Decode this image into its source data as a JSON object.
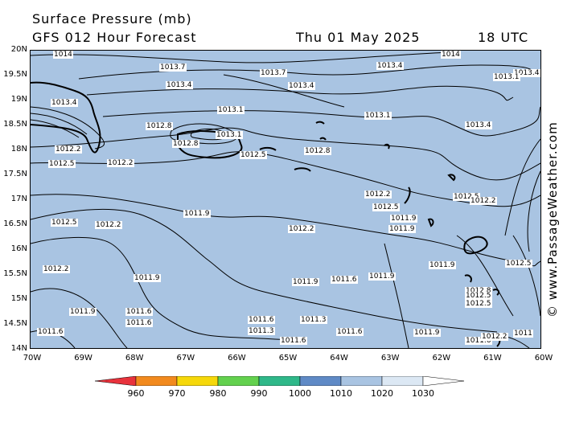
{
  "title": "Surface Pressure (mb)",
  "subtitle": "GFS 012 Hour Forecast",
  "date": "Thu 01 May 2025",
  "time": "18 UTC",
  "credit": "© www.PassageWeather.com",
  "map": {
    "background": "#a9c4e2",
    "lat_labels": [
      "20N",
      "19.5N",
      "19N",
      "18.5N",
      "18N",
      "17.5N",
      "17N",
      "16.5N",
      "16N",
      "15.5N",
      "15N",
      "14.5N",
      "14N"
    ],
    "lon_labels": [
      "70W",
      "69W",
      "68W",
      "67W",
      "66W",
      "65W",
      "64W",
      "63W",
      "62W",
      "61W",
      "60W"
    ],
    "isobar_labels": [
      "1014",
      "1013.7",
      "1013.7",
      "1013.4",
      "1013.4",
      "1013.4",
      "1013.1",
      "1013.1",
      "1013.4",
      "1014",
      "1013.4",
      "1013.1",
      "1013.4",
      "1013.1",
      "1012.8",
      "1012.8",
      "1012.5",
      "1012.2",
      "1012.2",
      "1012.8",
      "1012.2",
      "1012.5",
      "1012.5",
      "1012.5",
      "1012.2",
      "1012.5",
      "1011.9",
      "1012.2",
      "1011.9",
      "1012.2",
      "1012.5",
      "1011.9",
      "1011.9",
      "1012.2",
      "1012.8",
      "1012.5",
      "1011.9",
      "1011.9",
      "1011.6",
      "1011.9",
      "1012.5",
      "1011.9",
      "1011.6",
      "1011.6",
      "1011.6",
      "1011.6",
      "1011.3",
      "1011.3",
      "1011.6",
      "1011.6",
      "1011.9",
      "1011.6",
      "1012.2",
      "1011"
    ],
    "land_color": "#a9c4e2"
  },
  "colorbar": {
    "ticks": [
      "960",
      "970",
      "980",
      "990",
      "1000",
      "1010",
      "1020",
      "1030"
    ],
    "colors": [
      "#e8323c",
      "#f28a1e",
      "#f6d80a",
      "#63d14e",
      "#2fb889",
      "#5f8ac6",
      "#a9c4e2",
      "#dce8f4",
      "#ffffff"
    ]
  }
}
